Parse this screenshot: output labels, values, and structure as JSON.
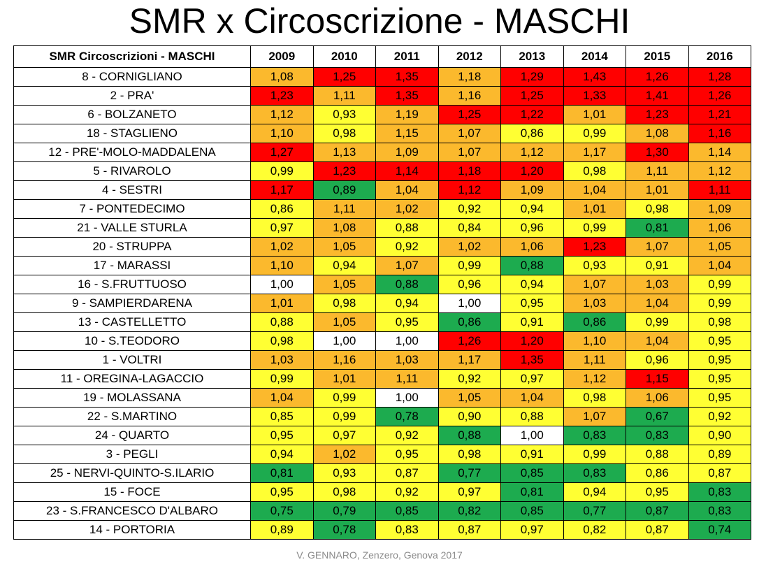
{
  "title": "SMR x Circoscrizione - MASCHI",
  "table": {
    "header_label": "SMR Circoscrizioni - MASCHI",
    "years": [
      "2009",
      "2010",
      "2011",
      "2012",
      "2013",
      "2014",
      "2015",
      "2016"
    ],
    "color_key": {
      "R": "#ff0000",
      "O": "#fbb92d",
      "Y": "#ffff33",
      "G": "#1dab4f",
      "W": "#ffffff"
    },
    "rows": [
      {
        "name": "8 - CORNIGLIANO",
        "values": [
          "1,08",
          "1,25",
          "1,35",
          "1,18",
          "1,29",
          "1,43",
          "1,26",
          "1,28"
        ],
        "colors": "ORRORRRR"
      },
      {
        "name": "2 - PRA'",
        "values": [
          "1,23",
          "1,11",
          "1,35",
          "1,16",
          "1,25",
          "1,33",
          "1,41",
          "1,26"
        ],
        "colors": "RORORRRR"
      },
      {
        "name": "6 - BOLZANETO",
        "values": [
          "1,12",
          "0,93",
          "1,19",
          "1,25",
          "1,22",
          "1,01",
          "1,23",
          "1,21"
        ],
        "colors": "OYORRORR"
      },
      {
        "name": "18 - STAGLIENO",
        "values": [
          "1,10",
          "0,98",
          "1,15",
          "1,07",
          "0,86",
          "0,99",
          "1,08",
          "1,16"
        ],
        "colors": "OYOOYYOR"
      },
      {
        "name": "12 - PRE'-MOLO-MADDALENA",
        "values": [
          "1,27",
          "1,13",
          "1,09",
          "1,07",
          "1,12",
          "1,17",
          "1,30",
          "1,14"
        ],
        "colors": "ROOOOORO"
      },
      {
        "name": "5 - RIVAROLO",
        "values": [
          "0,99",
          "1,23",
          "1,14",
          "1,18",
          "1,20",
          "0,98",
          "1,11",
          "1,12"
        ],
        "colors": "YRRRRYOO"
      },
      {
        "name": "4 - SESTRI",
        "values": [
          "1,17",
          "0,89",
          "1,04",
          "1,12",
          "1,09",
          "1,04",
          "1,01",
          "1,11"
        ],
        "colors": "RGOROOOR"
      },
      {
        "name": "7 - PONTEDECIMO",
        "values": [
          "0,86",
          "1,11",
          "1,02",
          "0,92",
          "0,94",
          "1,01",
          "0,98",
          "1,09"
        ],
        "colors": "YOOYYOYO"
      },
      {
        "name": "21 - VALLE STURLA",
        "values": [
          "0,97",
          "1,08",
          "0,88",
          "0,84",
          "0,96",
          "0,99",
          "0,81",
          "1,06"
        ],
        "colors": "YOYYYYGO"
      },
      {
        "name": "20 - STRUPPA",
        "values": [
          "1,02",
          "1,05",
          "0,92",
          "1,02",
          "1,06",
          "1,23",
          "1,07",
          "1,05"
        ],
        "colors": "OOYOOROO"
      },
      {
        "name": "17 - MARASSI",
        "values": [
          "1,10",
          "0,94",
          "1,07",
          "0,99",
          "0,88",
          "0,93",
          "0,91",
          "1,04"
        ],
        "colors": "OYOYGYYO"
      },
      {
        "name": "16 - S.FRUTTUOSO",
        "values": [
          "1,00",
          "1,05",
          "0,88",
          "0,96",
          "0,94",
          "1,07",
          "1,03",
          "0,99"
        ],
        "colors": "WOGYYOOY"
      },
      {
        "name": "9 - SAMPIERDARENA",
        "values": [
          "1,01",
          "0,98",
          "0,94",
          "1,00",
          "0,95",
          "1,03",
          "1,04",
          "0,99"
        ],
        "colors": "OYYWYOOY"
      },
      {
        "name": "13 - CASTELLETTO",
        "values": [
          "0,88",
          "1,05",
          "0,95",
          "0,86",
          "0,91",
          "0,86",
          "0,99",
          "0,98"
        ],
        "colors": "YOYGYGYY"
      },
      {
        "name": "10 - S.TEODORO",
        "values": [
          "0,98",
          "1,00",
          "1,00",
          "1,26",
          "1,20",
          "1,10",
          "1,04",
          "0,95"
        ],
        "colors": "YWWRROOY"
      },
      {
        "name": "1 - VOLTRI",
        "values": [
          "1,03",
          "1,16",
          "1,03",
          "1,17",
          "1,35",
          "1,11",
          "0,96",
          "0,95"
        ],
        "colors": "OOOOROYY"
      },
      {
        "name": "11 - OREGINA-LAGACCIO",
        "values": [
          "0,99",
          "1,01",
          "1,11",
          "0,92",
          "0,97",
          "1,12",
          "1,15",
          "0,95"
        ],
        "colors": "YOOYYORY"
      },
      {
        "name": "19 - MOLASSANA",
        "values": [
          "1,04",
          "0,99",
          "1,00",
          "1,05",
          "1,04",
          "0,98",
          "1,06",
          "0,95"
        ],
        "colors": "OYWOOYOY"
      },
      {
        "name": "22 - S.MARTINO",
        "values": [
          "0,85",
          "0,99",
          "0,78",
          "0,90",
          "0,88",
          "1,07",
          "0,67",
          "0,92"
        ],
        "colors": "YYGYYOGY"
      },
      {
        "name": "24 - QUARTO",
        "values": [
          "0,95",
          "0,97",
          "0,92",
          "0,88",
          "1,00",
          "0,83",
          "0,83",
          "0,90"
        ],
        "colors": "YYYGWGGY"
      },
      {
        "name": "3 - PEGLI",
        "values": [
          "0,94",
          "1,02",
          "0,95",
          "0,98",
          "0,91",
          "0,99",
          "0,88",
          "0,89"
        ],
        "colors": "YOYYYYYY"
      },
      {
        "name": "25 - NERVI-QUINTO-S.ILARIO",
        "values": [
          "0,81",
          "0,93",
          "0,87",
          "0,77",
          "0,85",
          "0,83",
          "0,86",
          "0,87"
        ],
        "colors": "GYYGGGYY"
      },
      {
        "name": "15 - FOCE",
        "values": [
          "0,95",
          "0,98",
          "0,92",
          "0,97",
          "0,81",
          "0,94",
          "0,95",
          "0,83"
        ],
        "colors": "YYYYGYYG"
      },
      {
        "name": "23 - S.FRANCESCO D'ALBARO",
        "values": [
          "0,75",
          "0,79",
          "0,85",
          "0,82",
          "0,85",
          "0,77",
          "0,87",
          "0,83"
        ],
        "colors": "GGGGGGGG"
      },
      {
        "name": "14 - PORTORIA",
        "values": [
          "0,89",
          "0,78",
          "0,83",
          "0,87",
          "0,97",
          "0,82",
          "0,87",
          "0,74"
        ],
        "colors": "YGYYYYYG"
      }
    ]
  },
  "footer": "V. GENNARO, Zenzero, Genova 2017"
}
